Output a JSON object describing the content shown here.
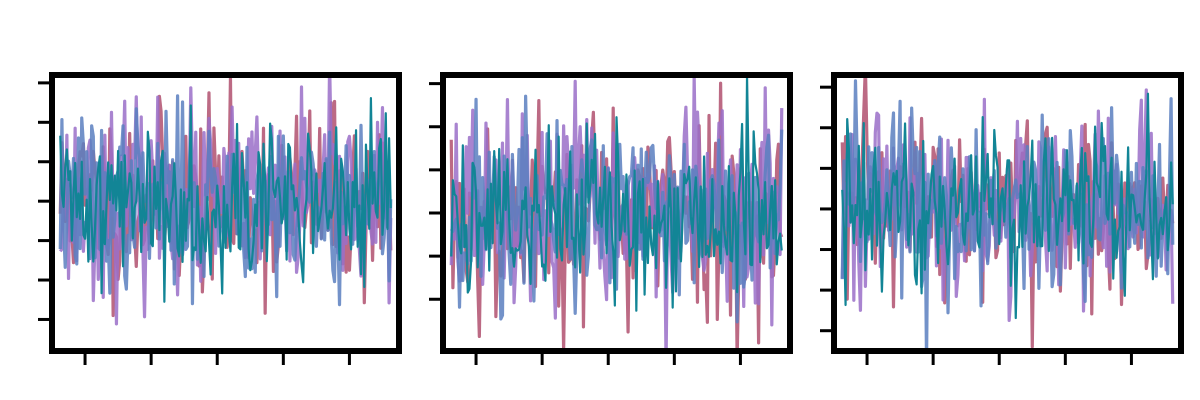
{
  "figure": {
    "suptitle": "",
    "colors": {
      "background": "#ffffff",
      "frame": "#000000",
      "series": [
        "#b0506e",
        "#9a6fc8",
        "#5a7fc0",
        "#128596"
      ]
    }
  },
  "chart_data": [
    {
      "type": "line",
      "title": "",
      "xlabel": "",
      "ylabel": "",
      "xlim": [
        -5,
        205
      ],
      "ylim": [
        -3.8,
        3.2
      ],
      "grid": false,
      "legend": "none",
      "x_ticks": [
        15,
        55,
        95,
        135,
        175
      ],
      "y_ticks": [
        -3,
        -2,
        -1,
        0,
        1,
        2,
        3
      ],
      "x_tick_labels": [
        "",
        "",
        "",
        "",
        ""
      ],
      "y_tick_labels": [
        "",
        "",
        "",
        "",
        "",
        "",
        ""
      ],
      "series": [
        {
          "seed": 11,
          "n": 201,
          "amplitude": 1.15,
          "color": "#b0506e"
        },
        {
          "seed": 23,
          "n": 201,
          "amplitude": 1.15,
          "color": "#9a6fc8"
        },
        {
          "seed": 37,
          "n": 201,
          "amplitude": 1.1,
          "color": "#5a7fc0"
        },
        {
          "seed": 41,
          "n": 201,
          "amplitude": 1.0,
          "color": "#128596"
        }
      ]
    },
    {
      "type": "line",
      "title": "",
      "xlabel": "",
      "ylabel": "",
      "xlim": [
        -5,
        205
      ],
      "ylim": [
        -3.2,
        3.2
      ],
      "grid": false,
      "legend": "none",
      "x_ticks": [
        15,
        55,
        95,
        135,
        175
      ],
      "y_ticks": [
        -2,
        -1,
        0,
        1,
        2,
        3
      ],
      "x_tick_labels": [
        "",
        "",
        "",
        "",
        ""
      ],
      "y_tick_labels": [
        "",
        "",
        "",
        "",
        "",
        ""
      ],
      "series": [
        {
          "seed": 53,
          "n": 201,
          "amplitude": 1.2,
          "color": "#b0506e"
        },
        {
          "seed": 67,
          "n": 201,
          "amplitude": 1.2,
          "color": "#9a6fc8"
        },
        {
          "seed": 71,
          "n": 201,
          "amplitude": 1.15,
          "color": "#5a7fc0"
        },
        {
          "seed": 89,
          "n": 201,
          "amplitude": 1.05,
          "color": "#128596"
        }
      ]
    },
    {
      "type": "line",
      "title": "",
      "xlabel": "",
      "ylabel": "",
      "xlim": [
        -5,
        205
      ],
      "ylim": [
        -3.5,
        3.3
      ],
      "grid": false,
      "legend": "none",
      "x_ticks": [
        15,
        55,
        95,
        135,
        175
      ],
      "y_ticks": [
        -3,
        -2,
        -1,
        0,
        1,
        2,
        3
      ],
      "x_tick_labels": [
        "",
        "",
        "",
        "",
        ""
      ],
      "y_tick_labels": [
        "",
        "",
        "",
        "",
        "",
        "",
        ""
      ],
      "series": [
        {
          "seed": 97,
          "n": 201,
          "amplitude": 1.15,
          "color": "#b0506e"
        },
        {
          "seed": 101,
          "n": 201,
          "amplitude": 1.15,
          "color": "#9a6fc8"
        },
        {
          "seed": 113,
          "n": 201,
          "amplitude": 1.1,
          "color": "#5a7fc0"
        },
        {
          "seed": 127,
          "n": 201,
          "amplitude": 1.0,
          "color": "#128596"
        }
      ]
    }
  ]
}
